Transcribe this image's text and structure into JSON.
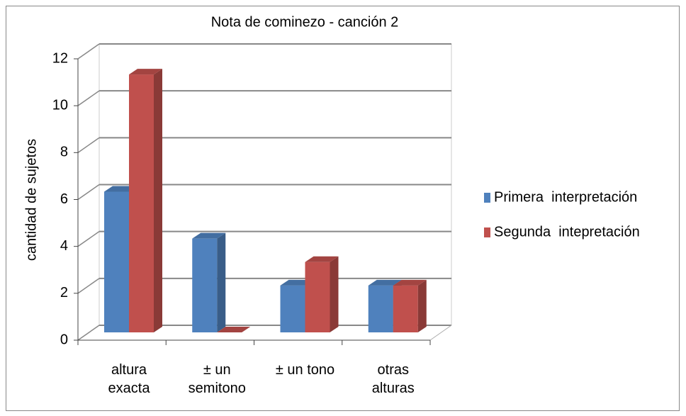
{
  "chart_data": {
    "type": "bar3d",
    "title": "Nota de cominezo - canción 2",
    "y_label": "cantidad de sujetos",
    "categories": [
      "altura\nexacta",
      "± un\nsemitono",
      "± un tono",
      "otras\nalturas"
    ],
    "series": [
      {
        "name": "Primera  interpretación",
        "color": "#4f81bd",
        "values": [
          6,
          4,
          2,
          2
        ]
      },
      {
        "name": "Segunda  intepretación",
        "color": "#c0504d",
        "values": [
          11,
          0,
          3,
          2
        ]
      }
    ],
    "ylim": [
      0,
      12
    ],
    "yticks": [
      0,
      2,
      4,
      6,
      8,
      10,
      12
    ],
    "grid": true,
    "legend": "right"
  }
}
